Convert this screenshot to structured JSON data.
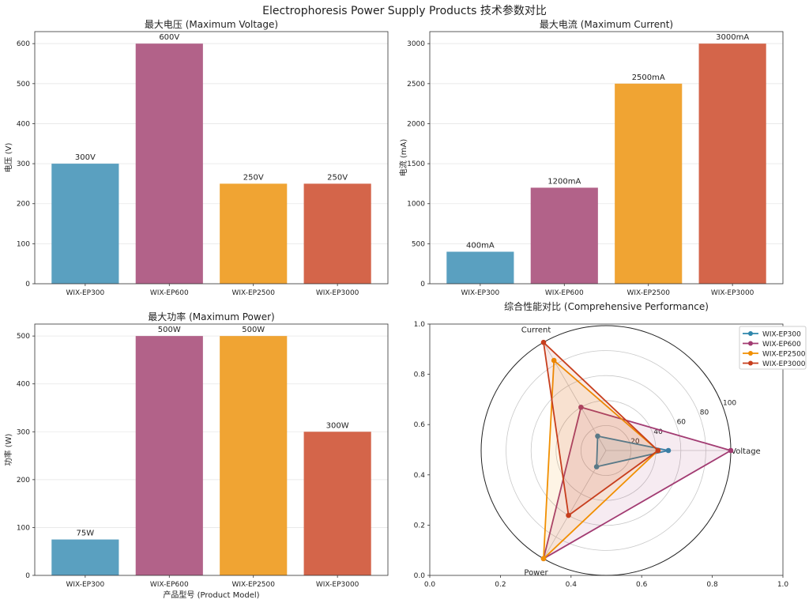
{
  "suptitle": "Electrophoresis Power Supply Products 技术参数对比",
  "colors": {
    "bars": [
      "#5aa0c0",
      "#b26289",
      "#f0a433",
      "#d4654a"
    ],
    "lines": [
      "#2E86AB",
      "#A23B72",
      "#F18F01",
      "#C73E1D"
    ]
  },
  "chart_data": [
    {
      "type": "bar",
      "title": "最大电压 (Maximum Voltage)",
      "xlabel": "",
      "ylabel": "电压 (V)",
      "categories": [
        "WIX-EP300",
        "WIX-EP600",
        "WIX-EP2500",
        "WIX-EP3000"
      ],
      "values": [
        300,
        600,
        250,
        250
      ],
      "data_labels": [
        "300V",
        "600V",
        "250V",
        "250V"
      ],
      "ylim": [
        0,
        630
      ],
      "yticks": [
        0,
        100,
        200,
        300,
        400,
        500,
        600
      ],
      "grid": "y"
    },
    {
      "type": "bar",
      "title": "最大电流 (Maximum Current)",
      "xlabel": "",
      "ylabel": "电流 (mA)",
      "categories": [
        "WIX-EP300",
        "WIX-EP600",
        "WIX-EP2500",
        "WIX-EP3000"
      ],
      "values": [
        400,
        1200,
        2500,
        3000
      ],
      "data_labels": [
        "400mA",
        "1200mA",
        "2500mA",
        "3000mA"
      ],
      "ylim": [
        0,
        3150
      ],
      "yticks": [
        0,
        500,
        1000,
        1500,
        2000,
        2500,
        3000
      ],
      "grid": "y"
    },
    {
      "type": "bar",
      "title": "最大功率 (Maximum Power)",
      "xlabel": "产品型号 (Product Model)",
      "ylabel": "功率 (W)",
      "categories": [
        "WIX-EP300",
        "WIX-EP600",
        "WIX-EP2500",
        "WIX-EP3000"
      ],
      "values": [
        75,
        500,
        500,
        300
      ],
      "data_labels": [
        "75W",
        "500W",
        "500W",
        "300W"
      ],
      "ylim": [
        0,
        525
      ],
      "yticks": [
        0,
        100,
        200,
        300,
        400,
        500
      ],
      "grid": "y"
    },
    {
      "type": "radar",
      "title": "综合性能对比 (Comprehensive Performance)",
      "axes": [
        "Voltage",
        "Current",
        "Power"
      ],
      "rlim": [
        0,
        100
      ],
      "rticks": [
        20,
        40,
        60,
        80,
        100
      ],
      "frame_ticks": [
        "0.0",
        "0.2",
        "0.4",
        "0.6",
        "0.8",
        "1.0"
      ],
      "legend_placement": "top-right",
      "series": [
        {
          "name": "WIX-EP300",
          "values": [
            50,
            13.3,
            15
          ]
        },
        {
          "name": "WIX-EP600",
          "values": [
            100,
            40,
            100
          ]
        },
        {
          "name": "WIX-EP2500",
          "values": [
            41.7,
            83.3,
            100
          ]
        },
        {
          "name": "WIX-EP3000",
          "values": [
            41.7,
            100,
            60
          ]
        }
      ]
    }
  ]
}
